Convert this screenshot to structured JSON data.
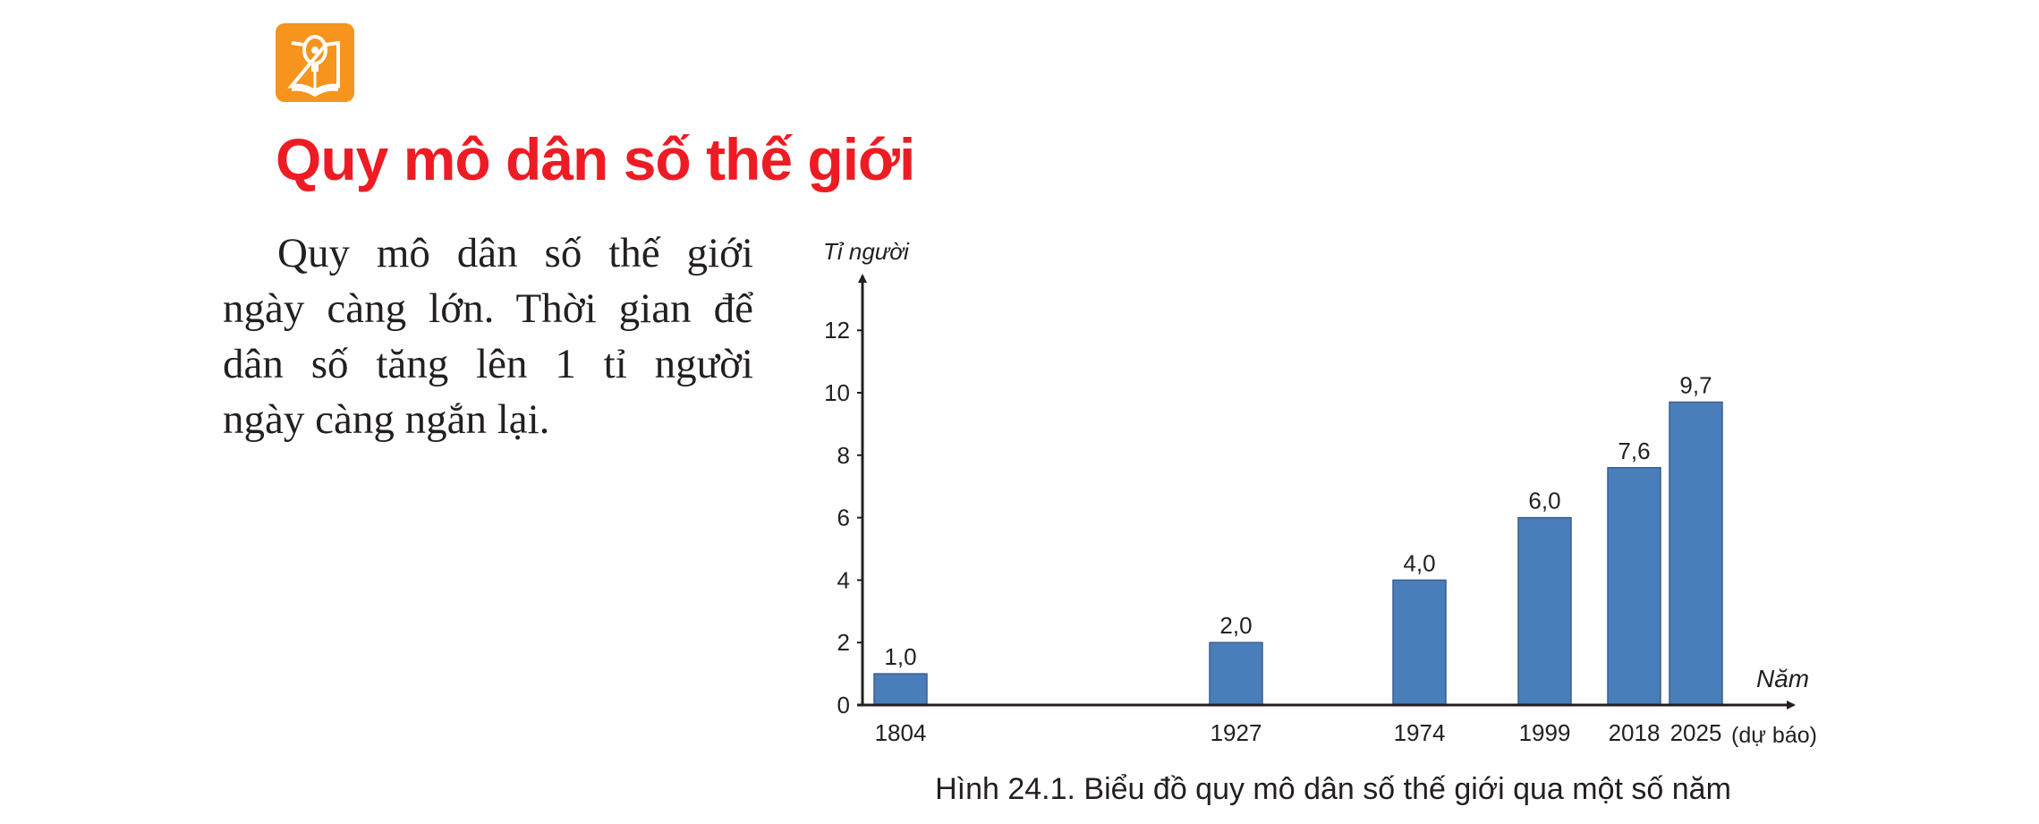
{
  "header": {
    "icon": "lightbulb-book-icon",
    "icon_color": "#F7941D",
    "title": "Quy mô dân số thế giới",
    "title_color": "#ED1C24"
  },
  "body": {
    "lines": [
      "Quy mô dân số thế giới",
      "ngày càng lớn. Thời gian để",
      "dân số tăng lên 1 tỉ người",
      "ngày càng ngắn lại."
    ]
  },
  "chart_data": {
    "type": "bar",
    "ylabel": "Tỉ người",
    "xlabel": "Năm",
    "categories": [
      "1804",
      "1927",
      "1974",
      "1999",
      "2018",
      "2025"
    ],
    "category_note": "(dự báo)",
    "values": [
      1.0,
      2.0,
      4.0,
      6.0,
      7.6,
      9.7
    ],
    "data_labels": [
      "1,0",
      "2,0",
      "4,0",
      "6,0",
      "7,6",
      "9,7"
    ],
    "yticks": [
      "0",
      "2",
      "4",
      "6",
      "8",
      "10",
      "12"
    ],
    "ylim": [
      0,
      13
    ],
    "bar_color": "#4A7EBB",
    "grid": false,
    "caption": "Hình 24.1. Biểu đồ quy mô dân số thế giới qua một số năm"
  }
}
